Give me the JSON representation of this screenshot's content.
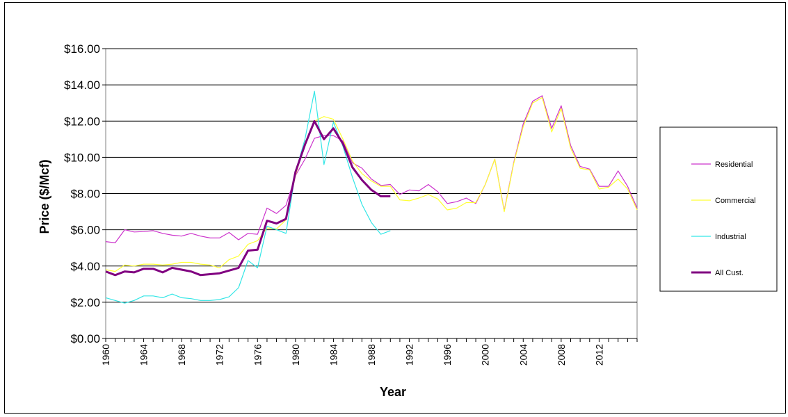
{
  "chart_data": {
    "type": "line",
    "title": "",
    "xlabel": "Year",
    "ylabel": "Price ($/Mcf)",
    "xlim": [
      1960,
      2016
    ],
    "ylim": [
      0,
      16
    ],
    "y_ticks": [
      "$0.00",
      "$2.00",
      "$4.00",
      "$6.00",
      "$8.00",
      "$10.00",
      "$12.00",
      "$14.00",
      "$16.00"
    ],
    "x_ticks": [
      "1960",
      "1964",
      "1968",
      "1972",
      "1976",
      "1980",
      "1984",
      "1988",
      "1992",
      "1996",
      "2000",
      "2004",
      "2008",
      "2012"
    ],
    "grid": "horizontal",
    "legend_position": "right",
    "series": [
      {
        "name": "Residential",
        "color": "#cc33cc",
        "x": [
          1960,
          1961,
          1962,
          1963,
          1964,
          1965,
          1966,
          1967,
          1968,
          1969,
          1970,
          1971,
          1972,
          1973,
          1974,
          1975,
          1976,
          1977,
          1978,
          1979,
          1980,
          1981,
          1982,
          1983,
          1984,
          1985,
          1986,
          1987,
          1988,
          1989,
          1990,
          1991,
          1992,
          1993,
          1994,
          1995,
          1996,
          1997,
          1998,
          1999,
          2000,
          2001,
          2002,
          2003,
          2004,
          2005,
          2006,
          2007,
          2008,
          2009,
          2010,
          2011,
          2012,
          2013,
          2014,
          2015,
          2016
        ],
        "values": [
          5.35,
          5.28,
          6.0,
          5.88,
          5.9,
          5.95,
          5.8,
          5.7,
          5.65,
          5.8,
          5.65,
          5.55,
          5.55,
          5.85,
          5.45,
          5.8,
          5.75,
          7.2,
          6.9,
          7.35,
          9.0,
          9.9,
          11.05,
          11.2,
          11.2,
          10.9,
          9.7,
          9.4,
          8.8,
          8.45,
          8.5,
          7.95,
          8.2,
          8.15,
          8.5,
          8.1,
          7.45,
          7.55,
          7.75,
          7.45,
          8.5,
          9.9,
          7.05,
          9.7,
          11.85,
          13.1,
          13.4,
          11.6,
          12.85,
          10.65,
          9.5,
          9.35,
          8.4,
          8.4,
          9.25,
          8.4,
          7.2
        ]
      },
      {
        "name": "Commercial",
        "color": "#ffff33",
        "x": [
          1960,
          1961,
          1962,
          1963,
          1964,
          1965,
          1966,
          1967,
          1968,
          1969,
          1970,
          1971,
          1972,
          1973,
          1974,
          1975,
          1976,
          1977,
          1978,
          1979,
          1980,
          1981,
          1982,
          1983,
          1984,
          1985,
          1986,
          1987,
          1988,
          1989,
          1990,
          1991,
          1992,
          1993,
          1994,
          1995,
          1996,
          1997,
          1998,
          1999,
          2000,
          2001,
          2002,
          2003,
          2004,
          2005,
          2006,
          2007,
          2008,
          2009,
          2010,
          2011,
          2012,
          2013,
          2014,
          2015,
          2016
        ],
        "values": [
          3.8,
          3.7,
          4.05,
          4.0,
          4.1,
          4.1,
          4.05,
          4.1,
          4.2,
          4.2,
          4.1,
          4.05,
          3.9,
          4.35,
          4.55,
          5.2,
          5.4,
          6.1,
          6.05,
          6.55,
          9.0,
          10.8,
          12.0,
          12.25,
          12.1,
          11.0,
          9.8,
          9.1,
          8.7,
          8.4,
          8.4,
          7.65,
          7.6,
          7.75,
          7.95,
          7.7,
          7.1,
          7.2,
          7.5,
          7.5,
          8.5,
          9.9,
          7.0,
          9.65,
          11.7,
          13.0,
          13.3,
          11.4,
          12.7,
          10.5,
          9.4,
          9.3,
          8.25,
          8.35,
          8.8,
          8.25,
          7.1
        ]
      },
      {
        "name": "Industrial",
        "color": "#33e6e6",
        "x": [
          1960,
          1961,
          1962,
          1963,
          1964,
          1965,
          1966,
          1967,
          1968,
          1969,
          1970,
          1971,
          1972,
          1973,
          1974,
          1975,
          1976,
          1977,
          1978,
          1979,
          1980,
          1981,
          1982,
          1983,
          1984,
          1985,
          1986,
          1987,
          1988,
          1989,
          1990
        ],
        "values": [
          2.25,
          2.1,
          1.95,
          2.1,
          2.35,
          2.35,
          2.25,
          2.45,
          2.25,
          2.2,
          2.1,
          2.1,
          2.15,
          2.3,
          2.8,
          4.3,
          3.9,
          6.2,
          6.0,
          5.8,
          9.2,
          11.0,
          13.65,
          9.6,
          11.95,
          10.6,
          8.9,
          7.4,
          6.4,
          5.75,
          5.95
        ]
      },
      {
        "name": "All Cust.",
        "color": "#800080",
        "x": [
          1960,
          1961,
          1962,
          1963,
          1964,
          1965,
          1966,
          1967,
          1968,
          1969,
          1970,
          1971,
          1972,
          1973,
          1974,
          1975,
          1976,
          1977,
          1978,
          1979,
          1980,
          1981,
          1982,
          1983,
          1984,
          1985,
          1986,
          1987,
          1988,
          1989,
          1990
        ],
        "values": [
          3.7,
          3.5,
          3.7,
          3.65,
          3.85,
          3.85,
          3.65,
          3.9,
          3.8,
          3.7,
          3.5,
          3.55,
          3.6,
          3.75,
          3.9,
          4.85,
          4.9,
          6.5,
          6.35,
          6.6,
          9.2,
          10.7,
          12.0,
          11.0,
          11.6,
          10.75,
          9.45,
          8.75,
          8.2,
          7.85,
          7.85
        ]
      }
    ]
  }
}
